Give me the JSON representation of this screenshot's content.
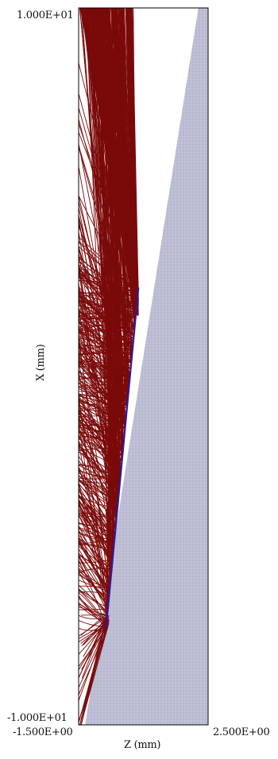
{
  "chart_data": {
    "type": "line",
    "xlabel": "Z  (mm)",
    "ylabel": "X  (mm)",
    "xlim": [
      -1.5,
      2.5
    ],
    "ylim": [
      -10.0,
      10.0
    ],
    "x_tick_labels": [
      "-1.500E+00",
      "2.500E+00"
    ],
    "y_tick_labels": [
      "1.000E+01",
      "-1.000E+01"
    ],
    "grid": false,
    "legend": "none",
    "colors": {
      "trajectories": "#7a0a0a",
      "electrode": "#b6b6cf",
      "electrode_mesh": "#d8d8e6",
      "emitter_edge": "#2a1aa8",
      "frame": "#000000"
    },
    "series": [
      {
        "values_note_excluded": true,
        "boundary_x": [
          -1.5,
          -1.3,
          2.2
        ],
        "boundary_y": [
          -10.0,
          -10.0,
          10.0
        ]
      }
    ],
    "emitter_line": {
      "x": [
        -0.65,
        0.35
      ],
      "y": [
        -7.3,
        2.2
      ]
    }
  }
}
